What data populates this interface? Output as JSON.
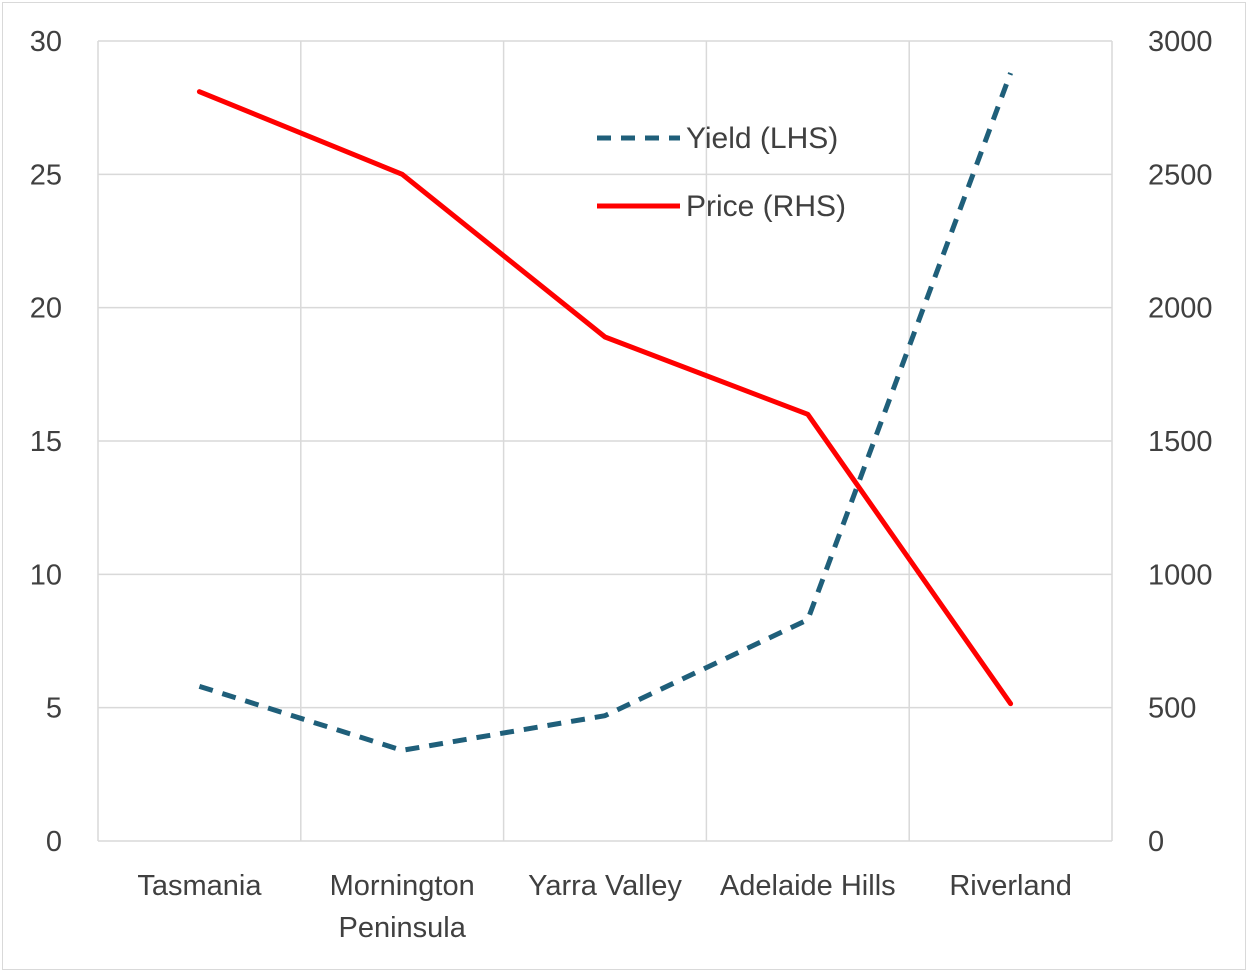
{
  "chart_data": {
    "type": "line",
    "categories": [
      "Tasmania",
      [
        "Mornington",
        "Peninsula"
      ],
      "Yarra Valley",
      "Adelaide Hills",
      "Riverland"
    ],
    "series": [
      {
        "name": "Yield (LHS)",
        "axis": "left",
        "style": "dashed",
        "color": "#1f5f7a",
        "values": [
          5.8,
          3.4,
          4.7,
          8.3,
          28.8
        ]
      },
      {
        "name": "Price (RHS)",
        "axis": "right",
        "style": "solid",
        "color": "#ff0000",
        "values": [
          2810,
          2500,
          1890,
          1600,
          515
        ]
      }
    ],
    "y_left": {
      "ylim": [
        0,
        30
      ],
      "ticks": [
        "0",
        "5",
        "10",
        "15",
        "20",
        "25",
        "30"
      ]
    },
    "y_right": {
      "ylim": [
        0,
        3000
      ],
      "ticks": [
        "0",
        "500",
        "1000",
        "1500",
        "2000",
        "2500",
        "3000"
      ]
    },
    "grid": true,
    "legend_position": "top-center"
  }
}
